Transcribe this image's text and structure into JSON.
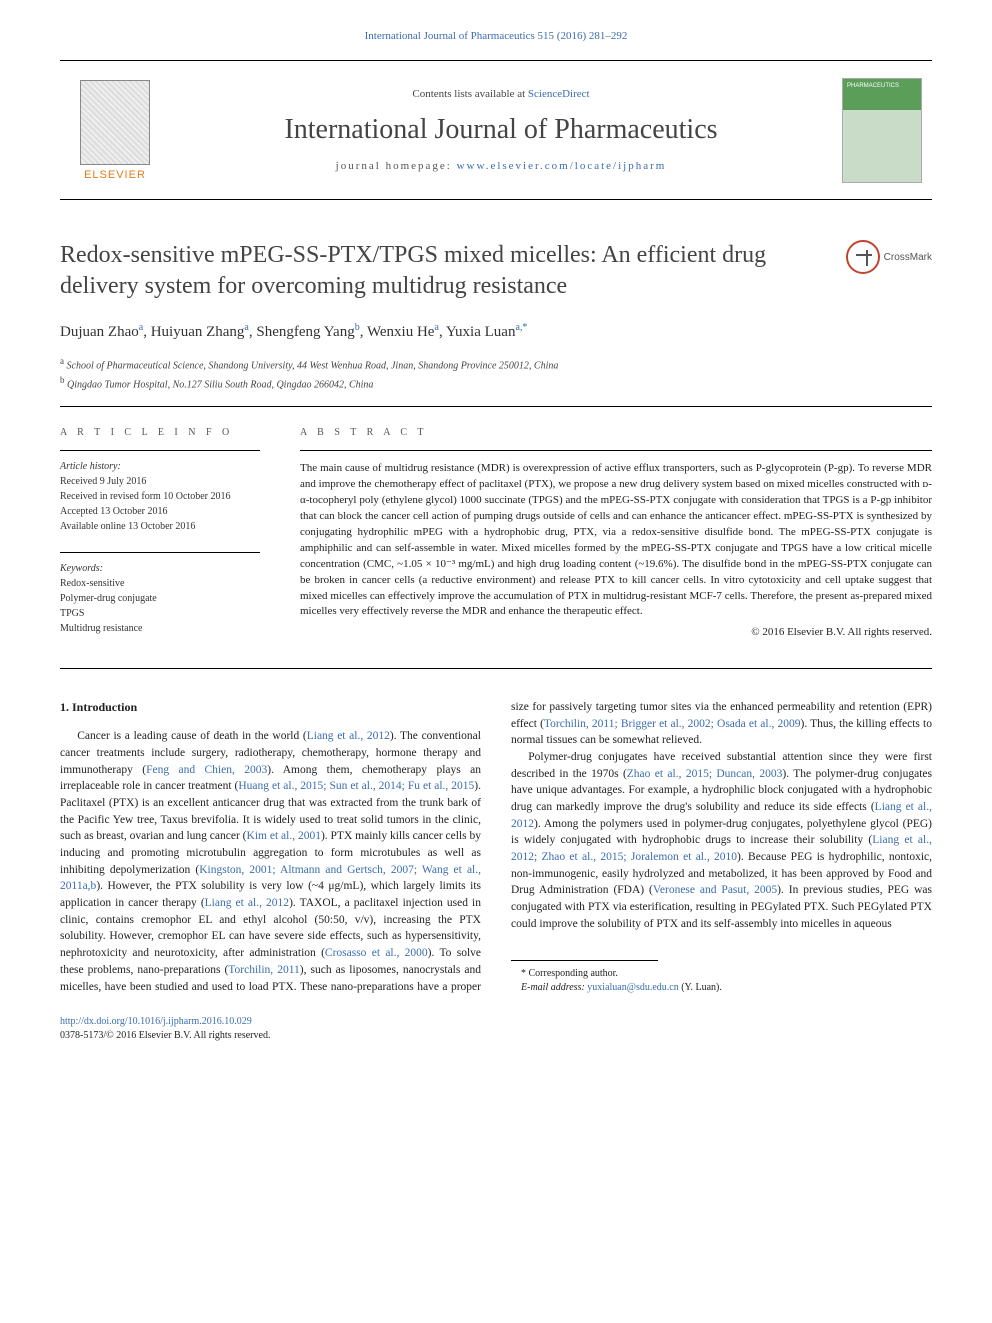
{
  "header": {
    "citation": "International Journal of Pharmaceutics 515 (2016) 281–292",
    "contents_prefix": "Contents lists available at ",
    "contents_link": "ScienceDirect",
    "journal_name": "International Journal of Pharmaceutics",
    "homepage_prefix": "journal homepage: ",
    "homepage_url": "www.elsevier.com/locate/ijpharm",
    "elsevier": "ELSEVIER",
    "cover_label": "PHARMACEUTICS"
  },
  "crossmark": "CrossMark",
  "title": "Redox-sensitive mPEG-SS-PTX/TPGS mixed micelles: An efficient drug delivery system for overcoming multidrug resistance",
  "authors_html": "Dujuan Zhao<sup>a</sup>, Huiyuan Zhang<sup>a</sup>, Shengfeng Yang<sup>b</sup>, Wenxiu He<sup>a</sup>, Yuxia Luan<sup>a,*</sup>",
  "affiliations": {
    "a": "School of Pharmaceutical Science, Shandong University, 44 West Wenhua Road, Jinan, Shandong Province 250012, China",
    "b": "Qingdao Tumor Hospital, No.127 Siliu South Road, Qingdao 266042, China"
  },
  "article_info": {
    "label": "A R T I C L E  I N F O",
    "history_label": "Article history:",
    "history": [
      "Received 9 July 2016",
      "Received in revised form 10 October 2016",
      "Accepted 13 October 2016",
      "Available online 13 October 2016"
    ],
    "keywords_label": "Keywords:",
    "keywords": [
      "Redox-sensitive",
      "Polymer-drug conjugate",
      "TPGS",
      "Multidrug resistance"
    ]
  },
  "abstract": {
    "label": "A B S T R A C T",
    "text": "The main cause of multidrug resistance (MDR) is overexpression of active efflux transporters, such as P-glycoprotein (P-gp). To reverse MDR and improve the chemotherapy effect of paclitaxel (PTX), we propose a new drug delivery system based on mixed micelles constructed with ᴅ-α-tocopheryl poly (ethylene glycol) 1000 succinate (TPGS) and the mPEG-SS-PTX conjugate with consideration that TPGS is a P-gp inhibitor that can block the cancer cell action of pumping drugs outside of cells and can enhance the anticancer effect. mPEG-SS-PTX is synthesized by conjugating hydrophilic mPEG with a hydrophobic drug, PTX, via a redox-sensitive disulfide bond. The mPEG-SS-PTX conjugate is amphiphilic and can self-assemble in water. Mixed micelles formed by the mPEG-SS-PTX conjugate and TPGS have a low critical micelle concentration (CMC, ~1.05 × 10⁻³ mg/mL) and high drug loading content (~19.6%). The disulfide bond in the mPEG-SS-PTX conjugate can be broken in cancer cells (a reductive environment) and release PTX to kill cancer cells. In vitro cytotoxicity and cell uptake suggest that mixed micelles can effectively improve the accumulation of PTX in multidrug-resistant MCF-7 cells. Therefore, the present as-prepared mixed micelles very effectively reverse the MDR and enhance the therapeutic effect.",
    "copyright": "© 2016 Elsevier B.V. All rights reserved."
  },
  "intro": {
    "heading": "1. Introduction",
    "p1_pre": "Cancer is a leading cause of death in the world (",
    "p1_ref1": "Liang et al., 2012",
    "p1_mid1": "). The conventional cancer treatments include surgery, radiotherapy, chemotherapy, hormone therapy and immunotherapy (",
    "p1_ref2": "Feng and Chien, 2003",
    "p1_mid2": "). Among them, chemotherapy plays an irreplaceable role in cancer treatment (",
    "p1_ref3": "Huang et al., 2015; Sun et al., 2014; Fu et al., 2015",
    "p1_mid3": "). Paclitaxel (PTX) is an excellent anticancer drug that was extracted from the trunk bark of the Pacific Yew tree, Taxus brevifolia. It is widely used to treat solid tumors in the clinic, such as breast, ovarian and lung cancer (",
    "p1_ref4": "Kim et al., 2001",
    "p1_mid4": "). PTX mainly kills cancer cells by inducing and promoting microtubulin aggregation to form microtubules as well as inhibiting depolymerization (",
    "p1_ref5": "Kingston, 2001; Altmann and Gertsch, 2007; Wang et al., 2011a,b",
    "p1_mid5": "). However, the PTX solubility is very low (~4 μg/mL), which largely limits its application in cancer therapy (",
    "p1_ref6": "Liang et al., 2012",
    "p1_mid6": "). TAXOL, a paclitaxel injection used in clinic, contains cremophor EL and ethyl alcohol (50:50, v/v), increasing the PTX solubility. However, cremophor EL can have severe side effects, such as hypersensitivity, nephrotoxicity and neurotoxicity, after administration (",
    "p1_ref7": "Crosasso et al., 2000",
    "p1_mid7": "). To solve these problems, nano-preparations (",
    "p1_ref8": "Torchilin, 2011",
    "p1_mid8": "), such as liposomes, nanocrystals and micelles, have been studied and used to load PTX. These nano-preparations have a proper size for passively targeting tumor sites via the enhanced permeability and retention (EPR) effect (",
    "p1_ref9": "Torchilin, 2011; Brigger et al., 2002; Osada et al., 2009",
    "p1_end": "). Thus, the killing effects to normal tissues can be somewhat relieved.",
    "p2_pre": "Polymer-drug conjugates have received substantial attention since they were first described in the 1970s (",
    "p2_ref1": "Zhao et al., 2015; Duncan, 2003",
    "p2_mid1": "). The polymer-drug conjugates have unique advantages. For example, a hydrophilic block conjugated with a hydrophobic drug can markedly improve the drug's solubility and reduce its side effects (",
    "p2_ref2": "Liang et al., 2012",
    "p2_mid2": "). Among the polymers used in polymer-drug conjugates, polyethylene glycol (PEG) is widely conjugated with hydrophobic drugs to increase their solubility (",
    "p2_ref3": "Liang et al., 2012; Zhao et al., 2015; Joralemon et al., 2010",
    "p2_mid3": "). Because PEG is hydrophilic, nontoxic, non-immunogenic, easily hydrolyzed and metabolized, it has been approved by Food and Drug Administration (FDA) (",
    "p2_ref4": "Veronese and Pasut, 2005",
    "p2_end": "). In previous studies, PEG was conjugated with PTX via esterification, resulting in PEGylated PTX. Such PEGylated PTX could improve the solubility of PTX and its self-assembly into micelles in aqueous"
  },
  "footnote": {
    "corresponding": "* Corresponding author.",
    "email_label": "E-mail address: ",
    "email": "yuxialuan@sdu.edu.cn",
    "email_suffix": " (Y. Luan)."
  },
  "doi": {
    "url": "http://dx.doi.org/10.1016/j.ijpharm.2016.10.029",
    "line2": "0378-5173/© 2016 Elsevier B.V. All rights reserved."
  }
}
